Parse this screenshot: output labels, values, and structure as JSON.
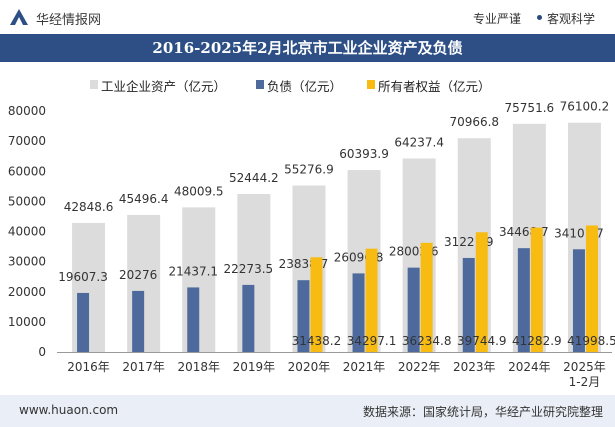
{
  "header": {
    "brand": "华经情报网",
    "tag_left": "专业严谨",
    "tag_right": "客观科学"
  },
  "chart_data": {
    "type": "bar",
    "title": "2016-2025年2月北京市工业企业资产及负债",
    "categories": [
      "2016年",
      "2017年",
      "2018年",
      "2019年",
      "2020年",
      "2021年",
      "2022年",
      "2023年",
      "2024年",
      "2025年\n1-2月"
    ],
    "series": [
      {
        "name": "工业企业资产（亿元）",
        "color": "#dcdcdc",
        "values": [
          42848.6,
          45496.4,
          48009.5,
          52444.2,
          55276.9,
          60393.9,
          64237.4,
          70966.8,
          75751.6,
          76100.2
        ]
      },
      {
        "name": "负债（亿元）",
        "color": "#4e6a9c",
        "values": [
          19607.3,
          20276,
          21437.1,
          22273.5,
          23838.7,
          26096.8,
          28002.6,
          31221.9,
          34468.7,
          34101.7
        ]
      },
      {
        "name": "所有者权益（亿元）",
        "color": "#f7bb12",
        "values": [
          null,
          null,
          null,
          null,
          31438.2,
          34297.1,
          36234.8,
          39744.9,
          41282.9,
          41998.5
        ]
      }
    ],
    "value_labels": {
      "assets": [
        "42848.6",
        "45496.4",
        "48009.5",
        "52444.2",
        "55276.9",
        "60393.9",
        "64237.4",
        "70966.8",
        "75751.6",
        "76100.2"
      ],
      "liabilities": [
        "19607.3",
        "20276",
        "21437.1",
        "22273.5",
        "23838.7",
        "26096.8",
        "28002.6",
        "31221.9",
        "34468.7",
        "34101.7"
      ],
      "equity": [
        "",
        "",
        "",
        "",
        "31438.2",
        "34297.1",
        "36234.8",
        "39744.9",
        "41282.9",
        "41998.5"
      ]
    },
    "yticks": [
      "0",
      "10000",
      "20000",
      "30000",
      "40000",
      "50000",
      "60000",
      "70000",
      "80000"
    ],
    "ylim": [
      0,
      80000
    ],
    "legend_position": "top",
    "grid": false
  },
  "footer": {
    "site": "www.huaon.com",
    "source": "数据来源：国家统计局，华经产业研究院整理"
  }
}
